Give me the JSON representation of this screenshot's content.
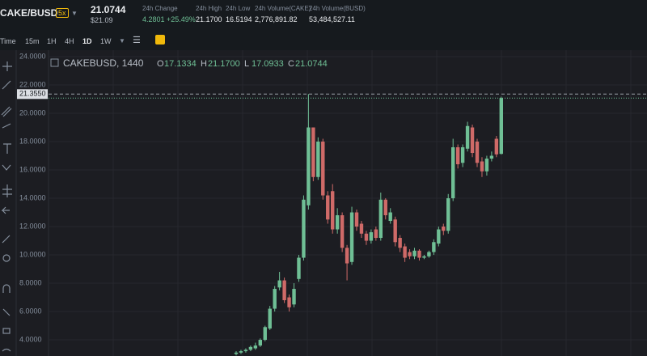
{
  "header": {
    "symbol": "CAKE/BUSD",
    "leverage": "5x",
    "price": "21.0744",
    "price_usd": "$21.09",
    "stats": [
      {
        "label": "24h Change",
        "value": "4.2801 +25.49%"
      },
      {
        "label": "24h High",
        "value": "21.1700"
      },
      {
        "label": "24h Low",
        "value": "16.5194"
      },
      {
        "label": "24h Volume(CAKE)",
        "value": "2,776,891.82"
      },
      {
        "label": "24h Volume(BUSD)",
        "value": "53,484,527.11"
      }
    ]
  },
  "toolbar": {
    "intervals": [
      "Time",
      "15m",
      "1H",
      "4H",
      "1D",
      "1W"
    ],
    "active": "1D"
  },
  "chart_data": {
    "type": "candlestick",
    "title": "CAKEBUSD, 1440",
    "legend": [
      {
        "label": "O",
        "value": "17.1334"
      },
      {
        "label": "H",
        "value": "21.1700"
      },
      {
        "label": "L",
        "value": "17.0933"
      },
      {
        "label": "C",
        "value": "21.0744"
      }
    ],
    "up_color": "#6fbf95",
    "down_color": "#cf6a68",
    "open": [
      3.0,
      3.1,
      3.2,
      3.3,
      3.4,
      3.6,
      4.0,
      4.8,
      6.2,
      7.7,
      8.2,
      7.0,
      6.5,
      8.3,
      9.8,
      13.5,
      19.0,
      15.5,
      18.0,
      14.2,
      14.5,
      11.8,
      12.8,
      10.5,
      9.5,
      13.0,
      12.2,
      11.5,
      11.0,
      11.8,
      11.2,
      13.9,
      12.4,
      12.5,
      11.2,
      10.6,
      10.2,
      9.9,
      10.3,
      9.8,
      9.9,
      10.2,
      10.8,
      12.0,
      11.7,
      14.0,
      17.6,
      16.5,
      17.5,
      19.0,
      18.0,
      16.6,
      15.9,
      16.8,
      18.2,
      17.1334
    ],
    "high": [
      3.2,
      3.3,
      3.4,
      3.6,
      3.8,
      4.1,
      5.0,
      6.4,
      7.8,
      8.8,
      8.4,
      7.2,
      8.0,
      10.0,
      14.2,
      21.355,
      19.0,
      18.3,
      18.2,
      14.5,
      15.0,
      13.3,
      13.0,
      10.7,
      13.4,
      13.2,
      12.4,
      11.7,
      11.8,
      12.0,
      14.4,
      14.0,
      13.3,
      12.7,
      11.4,
      10.8,
      10.4,
      10.5,
      10.4,
      10.0,
      10.3,
      11.1,
      12.0,
      12.2,
      14.3,
      18.2,
      17.8,
      17.8,
      19.4,
      19.2,
      18.2,
      16.9,
      17.0,
      17.3,
      18.4,
      21.17
    ],
    "low": [
      2.9,
      3.0,
      3.1,
      3.2,
      3.3,
      3.5,
      3.9,
      4.7,
      6.0,
      7.5,
      6.6,
      6.0,
      6.3,
      8.1,
      9.6,
      13.2,
      15.2,
      15.3,
      13.9,
      12.2,
      11.5,
      11.5,
      10.2,
      8.2,
      9.3,
      11.7,
      11.2,
      10.7,
      10.8,
      11.0,
      11.0,
      12.5,
      12.2,
      10.6,
      10.2,
      9.5,
      9.7,
      9.7,
      9.6,
      9.7,
      9.8,
      10.0,
      10.6,
      11.4,
      11.5,
      13.8,
      16.1,
      16.2,
      17.3,
      16.9,
      16.2,
      15.5,
      15.6,
      16.6,
      16.9,
      17.0933
    ],
    "close": [
      3.1,
      3.2,
      3.3,
      3.5,
      3.6,
      4.0,
      4.9,
      6.2,
      7.6,
      8.2,
      6.8,
      6.3,
      7.6,
      9.8,
      13.9,
      19.0,
      15.5,
      18.0,
      14.2,
      12.5,
      11.8,
      12.8,
      10.5,
      9.4,
      13.0,
      12.0,
      11.5,
      11.0,
      11.6,
      11.2,
      13.9,
      12.8,
      13.0,
      10.9,
      10.5,
      9.8,
      9.9,
      10.3,
      9.8,
      9.9,
      10.2,
      10.9,
      11.8,
      11.7,
      14.0,
      17.6,
      16.4,
      17.6,
      19.1,
      17.2,
      16.5,
      15.9,
      16.8,
      17.0,
      17.1,
      21.0744
    ],
    "ylim": [
      2.86,
      24.4
    ],
    "yticks": [
      {
        "value": 4,
        "label": "4.0000"
      },
      {
        "value": 6,
        "label": "6.0000"
      },
      {
        "value": 8,
        "label": "8.0000"
      },
      {
        "value": 10,
        "label": "10.0000"
      },
      {
        "value": 12,
        "label": "12.0000"
      },
      {
        "value": 14,
        "label": "14.0000"
      },
      {
        "value": 16,
        "label": "16.0000"
      },
      {
        "value": 18,
        "label": "18.0000"
      },
      {
        "value": 20,
        "label": "20.0000"
      },
      {
        "value": 22,
        "label": "22.0000"
      },
      {
        "value": 24,
        "label": "24.0000"
      }
    ],
    "crosshair": {
      "value": 21.355,
      "label": "21.3550"
    },
    "grid": true
  }
}
